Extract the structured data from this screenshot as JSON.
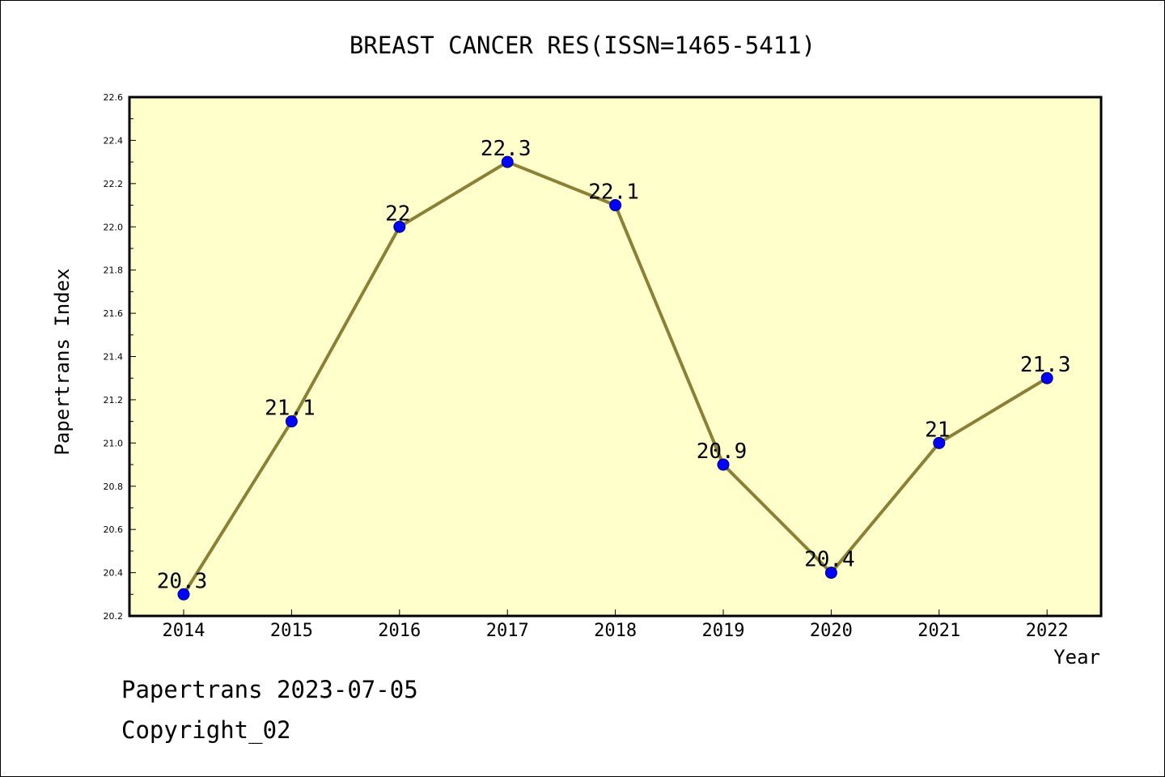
{
  "chart_data": {
    "type": "line",
    "title": "BREAST CANCER RES(ISSN=1465-5411)",
    "xlabel": "Year",
    "ylabel": "Papertrans Index",
    "categories": [
      "2014",
      "2015",
      "2016",
      "2017",
      "2018",
      "2019",
      "2020",
      "2021",
      "2022"
    ],
    "values": [
      20.3,
      21.1,
      22.0,
      22.3,
      22.1,
      20.9,
      20.4,
      21.0,
      21.3
    ],
    "data_labels": [
      "20.3",
      "21.1",
      "22",
      "22.3",
      "22.1",
      "20.9",
      "20.4",
      "21",
      "21.3"
    ],
    "ylim": [
      20.2,
      22.6
    ],
    "yticks": [
      "20.2",
      "20.4",
      "20.6",
      "20.8",
      "21.0",
      "21.2",
      "21.4",
      "21.6",
      "21.8",
      "22.0",
      "22.2",
      "22.4",
      "22.6"
    ],
    "grid": false,
    "legend": "none"
  },
  "colors": {
    "plot_background": "#ffffcc",
    "line": "#8b8036",
    "marker": "#0000ff",
    "axis": "#000000"
  },
  "footer": {
    "date_line": "Papertrans 2023-07-05",
    "copyright_line": "Copyright_02"
  }
}
